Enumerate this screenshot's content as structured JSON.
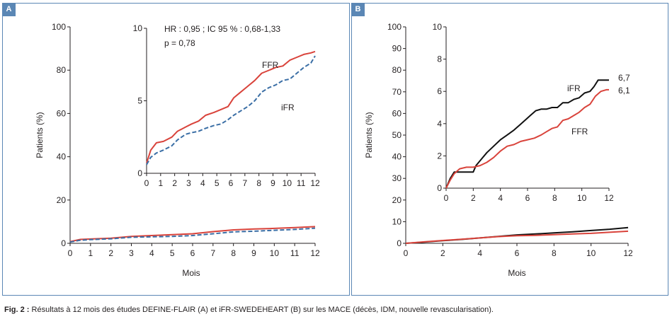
{
  "caption": {
    "fig_label": "Fig. 2 :",
    "text": "Résultats à 12 mois des études DEFINE-FLAIR (A) et iFR-SWEDEHEART (B) sur les MACE (décès, IDM, nouvelle revascularisation)."
  },
  "colors": {
    "ffr": "#d9433b",
    "ifr_a": "#3a6ea5",
    "ifr_b": "#111111",
    "axis": "#231f20",
    "frame": "#5b87b5"
  },
  "chart_data": [
    {
      "panel": "A",
      "type": "line",
      "title": "",
      "xlabel": "Mois",
      "ylabel": "Patients (%)",
      "xlim": [
        0,
        12
      ],
      "ylim": [
        0,
        100
      ],
      "xticks": [
        0,
        1,
        2,
        3,
        4,
        5,
        6,
        7,
        8,
        9,
        10,
        11,
        12
      ],
      "yticks": [
        0,
        20,
        40,
        60,
        80,
        100
      ],
      "series": [
        {
          "name": "FFR",
          "style": "solid",
          "color": "#d9433b",
          "x": [
            0,
            0.5,
            1,
            2,
            3,
            4,
            5,
            6,
            7,
            8,
            9,
            10,
            11,
            12
          ],
          "y": [
            0.8,
            1.8,
            2.0,
            2.4,
            3.2,
            3.6,
            4.0,
            4.4,
            5.4,
            6.2,
            6.6,
            6.9,
            7.3,
            7.7
          ]
        },
        {
          "name": "iFR",
          "style": "dashed",
          "color": "#3a6ea5",
          "x": [
            0,
            0.5,
            1,
            2,
            3,
            4,
            5,
            6,
            7,
            8,
            9,
            10,
            11,
            12
          ],
          "y": [
            0.6,
            1.4,
            1.7,
            2.1,
            2.8,
            3.0,
            3.2,
            3.6,
            4.4,
            5.3,
            5.6,
            6.0,
            6.4,
            7.0
          ]
        }
      ],
      "inset": {
        "xlim": [
          0,
          12
        ],
        "ylim": [
          0,
          10
        ],
        "xticks": [
          0,
          1,
          2,
          3,
          4,
          5,
          6,
          7,
          8,
          9,
          10,
          11,
          12
        ],
        "yticks": [
          0,
          5,
          10
        ],
        "annotation_lines": [
          "HR : 0,95 ; IC 95 % : 0,68-1,33",
          "p = 0,78"
        ],
        "labels": [
          "FFR",
          "iFR"
        ],
        "series": [
          {
            "name": "FFR",
            "style": "solid",
            "color": "#d9433b",
            "x": [
              0,
              0.3,
              0.7,
              1.2,
              1.8,
              2.2,
              2.8,
              3.2,
              3.7,
              4.2,
              4.8,
              5.3,
              5.8,
              6.2,
              6.7,
              7.2,
              7.7,
              8.2,
              8.7,
              9.2,
              9.7,
              10.2,
              10.7,
              11.2,
              11.7,
              12
            ],
            "y": [
              0.7,
              1.6,
              2.1,
              2.2,
              2.5,
              2.9,
              3.2,
              3.4,
              3.6,
              4.0,
              4.2,
              4.4,
              4.6,
              5.2,
              5.6,
              6.0,
              6.4,
              6.9,
              7.1,
              7.3,
              7.4,
              7.8,
              8.0,
              8.2,
              8.3,
              8.4
            ]
          },
          {
            "name": "iFR",
            "style": "dashed",
            "color": "#3a6ea5",
            "x": [
              0,
              0.3,
              0.7,
              1.2,
              1.8,
              2.2,
              2.8,
              3.2,
              3.7,
              4.2,
              4.8,
              5.3,
              5.8,
              6.2,
              6.7,
              7.2,
              7.7,
              8.2,
              8.7,
              9.2,
              9.7,
              10.2,
              10.7,
              11.2,
              11.7,
              12
            ],
            "y": [
              0.6,
              1.1,
              1.4,
              1.6,
              1.9,
              2.3,
              2.7,
              2.8,
              2.9,
              3.1,
              3.3,
              3.4,
              3.7,
              4.0,
              4.3,
              4.6,
              5.0,
              5.6,
              5.9,
              6.1,
              6.4,
              6.5,
              6.9,
              7.3,
              7.6,
              8.1
            ]
          }
        ]
      }
    },
    {
      "panel": "B",
      "type": "line",
      "title": "",
      "xlabel": "Mois",
      "ylabel": "Patients (%)",
      "xlim": [
        0,
        12
      ],
      "ylim": [
        0,
        100
      ],
      "xticks": [
        0,
        2,
        4,
        6,
        8,
        10,
        12
      ],
      "yticks": [
        0,
        10,
        20,
        30,
        40,
        50,
        60,
        70,
        80,
        90,
        100
      ],
      "series": [
        {
          "name": "iFR",
          "style": "solid",
          "color": "#111111",
          "x": [
            0,
            1,
            2,
            3,
            4,
            5,
            6,
            7,
            8,
            9,
            10,
            11,
            12
          ],
          "y": [
            0,
            0.6,
            1.2,
            1.8,
            2.5,
            3.2,
            3.9,
            4.3,
            4.8,
            5.3,
            5.9,
            6.5,
            7.3
          ]
        },
        {
          "name": "FFR",
          "style": "solid",
          "color": "#d9433b",
          "x": [
            0,
            1,
            2,
            3,
            4,
            5,
            6,
            7,
            8,
            9,
            10,
            11,
            12
          ],
          "y": [
            0,
            0.7,
            1.3,
            1.9,
            2.5,
            3.1,
            3.5,
            3.7,
            4.0,
            4.3,
            4.6,
            5.1,
            5.6
          ]
        }
      ],
      "inset": {
        "xlim": [
          0,
          12
        ],
        "ylim": [
          0,
          10
        ],
        "xticks": [
          0,
          2,
          4,
          6,
          8,
          10,
          12
        ],
        "yticks": [
          0,
          2,
          4,
          6,
          8,
          10
        ],
        "labels": [
          "iFR",
          "FFR"
        ],
        "end_values": [
          "6,7",
          "6,1"
        ],
        "series": [
          {
            "name": "iFR",
            "style": "solid",
            "color": "#111111",
            "x": [
              0,
              0.3,
              0.6,
              1.0,
              1.5,
              2.0,
              2.2,
              2.6,
              3.0,
              3.5,
              4.0,
              4.5,
              5.0,
              5.4,
              5.8,
              6.2,
              6.6,
              7.0,
              7.4,
              7.8,
              8.2,
              8.6,
              9.0,
              9.4,
              9.8,
              10.2,
              10.6,
              10.9,
              11.2,
              11.6,
              12
            ],
            "y": [
              0,
              0.6,
              1.0,
              1.0,
              1.0,
              1.0,
              1.4,
              1.8,
              2.2,
              2.6,
              3.0,
              3.3,
              3.6,
              3.9,
              4.2,
              4.5,
              4.8,
              4.9,
              4.9,
              5.0,
              5.0,
              5.3,
              5.3,
              5.5,
              5.6,
              5.9,
              6.0,
              6.3,
              6.7,
              6.7,
              6.7
            ]
          },
          {
            "name": "FFR",
            "style": "solid",
            "color": "#d9433b",
            "x": [
              0,
              0.3,
              0.6,
              1.0,
              1.5,
              2.0,
              2.5,
              3.0,
              3.5,
              4.0,
              4.5,
              5.0,
              5.5,
              6.0,
              6.5,
              7.0,
              7.4,
              7.8,
              8.2,
              8.6,
              9.0,
              9.4,
              9.8,
              10.2,
              10.6,
              11.0,
              11.4,
              11.8,
              12
            ],
            "y": [
              0,
              0.5,
              0.9,
              1.2,
              1.3,
              1.3,
              1.4,
              1.6,
              1.9,
              2.3,
              2.6,
              2.7,
              2.9,
              3.0,
              3.1,
              3.3,
              3.5,
              3.7,
              3.8,
              4.2,
              4.3,
              4.5,
              4.7,
              5.0,
              5.2,
              5.7,
              6.0,
              6.1,
              6.1
            ]
          }
        ]
      }
    }
  ]
}
